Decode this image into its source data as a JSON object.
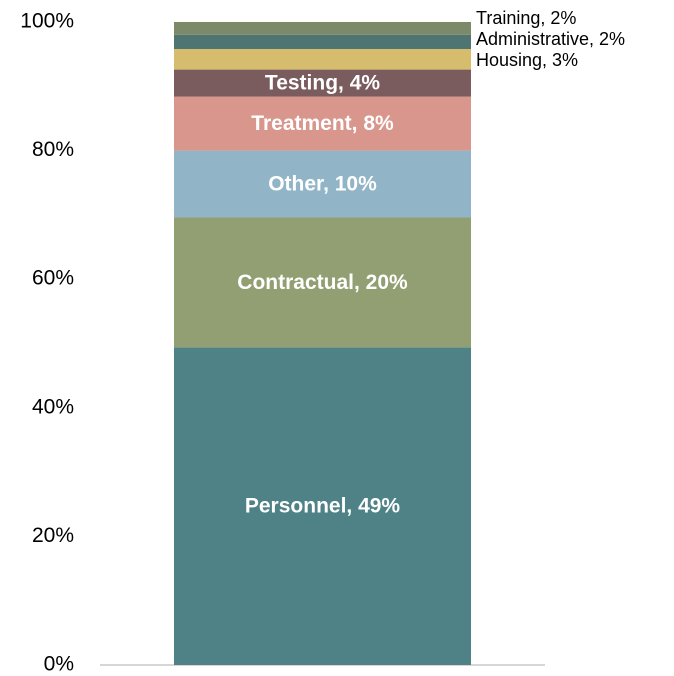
{
  "chart_data": {
    "type": "stacked-bar",
    "ylim": [
      0,
      100
    ],
    "yticks": [
      {
        "value": 0,
        "label": "0%"
      },
      {
        "value": 20,
        "label": "20%"
      },
      {
        "value": 40,
        "label": "40%"
      },
      {
        "value": 60,
        "label": "60%"
      },
      {
        "value": 80,
        "label": "80%"
      },
      {
        "value": 100,
        "label": "100%"
      }
    ],
    "series": [
      {
        "color": "#4e8287",
        "values": [
          49.4
        ],
        "value_labels": [
          "Personnel, 49%"
        ]
      },
      {
        "color": "#929f72",
        "values": [
          20.2
        ],
        "value_labels": [
          "Contractual, 20%"
        ]
      },
      {
        "color": "#91b5c7",
        "values": [
          10.4
        ],
        "value_labels": [
          "Other, 10%"
        ]
      },
      {
        "color": "#d9968d",
        "values": [
          8.4
        ],
        "value_labels": [
          "Treatment, 8%"
        ]
      },
      {
        "color": "#7a5c5e",
        "values": [
          4.2
        ],
        "value_labels": [
          "Testing, 4%"
        ]
      },
      {
        "color": "#d6bd6e",
        "values": [
          3.2
        ],
        "value_labels": [
          "Housing, 3%"
        ]
      },
      {
        "color": "#4f7572",
        "values": [
          2.2
        ],
        "value_labels": [
          "Administrative, 2%"
        ]
      },
      {
        "color": "#7d8a6a",
        "values": [
          2.0
        ],
        "value_labels": [
          "Training, 2%"
        ]
      }
    ]
  }
}
